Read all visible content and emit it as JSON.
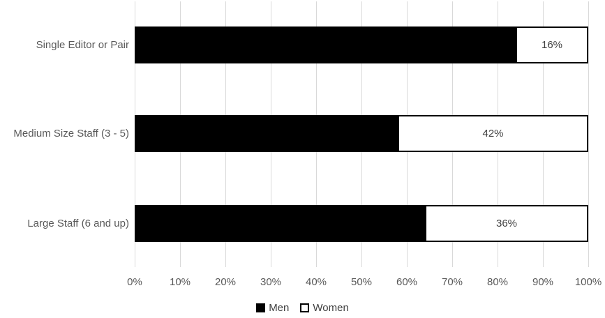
{
  "chart_data": {
    "type": "bar",
    "orientation": "horizontal-stacked",
    "title": "",
    "xlabel": "",
    "ylabel": "",
    "categories": [
      "Single Editor or Pair",
      "Medium Size Staff (3 - 5)",
      "Large Staff (6 and up)"
    ],
    "series": [
      {
        "name": "Men",
        "fill": "#000000",
        "border": "#000000",
        "values": [
          84,
          58,
          64
        ],
        "labels": [
          "",
          "",
          ""
        ]
      },
      {
        "name": "Women",
        "fill": "#ffffff",
        "border": "#000000",
        "values": [
          16,
          42,
          36
        ],
        "labels": [
          "16%",
          "42%",
          "36%"
        ]
      }
    ],
    "xlim": [
      0,
      100
    ],
    "x_ticks": [
      "0%",
      "10%",
      "20%",
      "30%",
      "40%",
      "50%",
      "60%",
      "70%",
      "80%",
      "90%",
      "100%"
    ],
    "grid": "vertical",
    "gridline_color": "#d9d9d9",
    "axis_text_color": "#595959",
    "data_label_color": "#404040",
    "legend": {
      "position": "bottom",
      "entries": [
        {
          "label": "Men",
          "fill": "#000000",
          "border": "#000000"
        },
        {
          "label": "Women",
          "fill": "#ffffff",
          "border": "#000000"
        }
      ]
    }
  }
}
